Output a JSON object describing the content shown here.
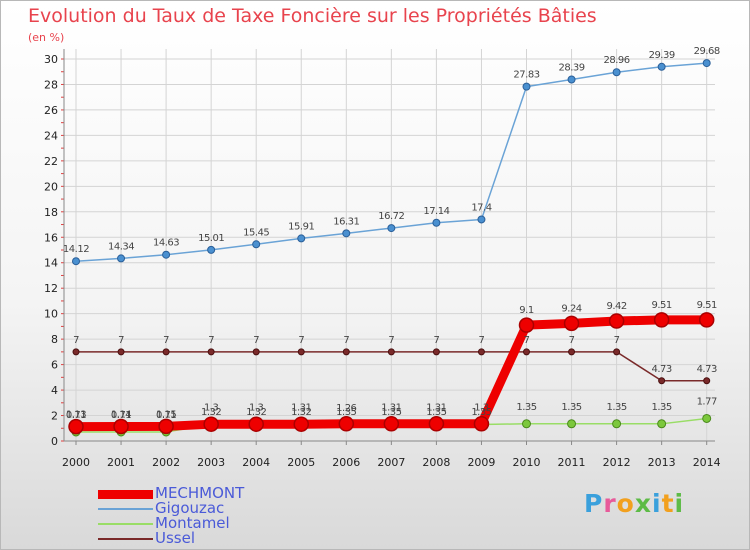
{
  "title": "Evolution du Taux de Taxe Foncière sur les Propriétés Bâties",
  "subtitle": "(en %)",
  "logo": {
    "text": "Proxiti",
    "letter_colors": [
      "#3aa0dc",
      "#e85a9a",
      "#f2a01e",
      "#5dbb46",
      "#3aa0dc",
      "#f2a01e",
      "#5dbb46"
    ]
  },
  "chart_data": {
    "type": "line",
    "x": [
      "2000",
      "2001",
      "2002",
      "2003",
      "2004",
      "2005",
      "2006",
      "2007",
      "2008",
      "2009",
      "2010",
      "2011",
      "2012",
      "2013",
      "2014"
    ],
    "ylim": [
      0,
      30
    ],
    "yticks": [
      "0",
      "2",
      "4",
      "6",
      "8",
      "10",
      "12",
      "14",
      "16",
      "18",
      "20",
      "22",
      "24",
      "26",
      "28",
      "30"
    ],
    "grid": true,
    "legend_position": "bottom-left",
    "series": [
      {
        "name": "MECHMONT",
        "color": "#ee0000",
        "values": [
          1.13,
          1.14,
          1.15,
          1.32,
          1.32,
          1.32,
          1.35,
          1.35,
          1.35,
          1.35,
          9.1,
          9.24,
          9.42,
          9.51,
          9.51
        ],
        "labels": [
          "1.13",
          "1.14",
          "1.15",
          "1.32",
          "1.32",
          "1.32",
          "1.35",
          "1.35",
          "1.35",
          "1.35",
          "9.1",
          "9.24",
          "9.42",
          "9.51",
          "9.51"
        ]
      },
      {
        "name": "Gigouzac",
        "color": "#6aa3d6",
        "values": [
          14.12,
          14.34,
          14.63,
          15.01,
          15.45,
          15.91,
          16.31,
          16.72,
          17.14,
          17.4,
          27.83,
          28.39,
          28.96,
          29.39,
          29.68
        ],
        "labels": [
          "14.12",
          "14.34",
          "14.63",
          "15.01",
          "15.45",
          "15.91",
          "16.31",
          "16.72",
          "17.14",
          "17.4",
          "27.83",
          "28.39",
          "28.96",
          "29.39",
          "29.68"
        ]
      },
      {
        "name": "Montamel",
        "color": "#99dd66",
        "values": [
          0.71,
          0.71,
          0.71,
          1.3,
          1.3,
          1.31,
          1.26,
          1.31,
          1.31,
          1.3,
          1.35,
          1.35,
          1.35,
          1.35,
          1.77
        ],
        "labels": [
          "0.71",
          "0.71",
          "0.71",
          "1.3",
          "1.3",
          "1.31",
          "1.26",
          "1.31",
          "1.31",
          "1.3",
          "1.35",
          "1.35",
          "1.35",
          "1.35",
          "1.77"
        ]
      },
      {
        "name": "Ussel",
        "color": "#7a2a2a",
        "values": [
          7,
          7,
          7,
          7,
          7,
          7,
          7,
          7,
          7,
          7,
          7,
          7,
          7,
          4.73,
          4.73
        ],
        "labels": [
          "7",
          "7",
          "7",
          "7",
          "7",
          "7",
          "7",
          "7",
          "7",
          "7",
          "7",
          "7",
          "7",
          "4.73",
          "4.73"
        ]
      }
    ]
  }
}
